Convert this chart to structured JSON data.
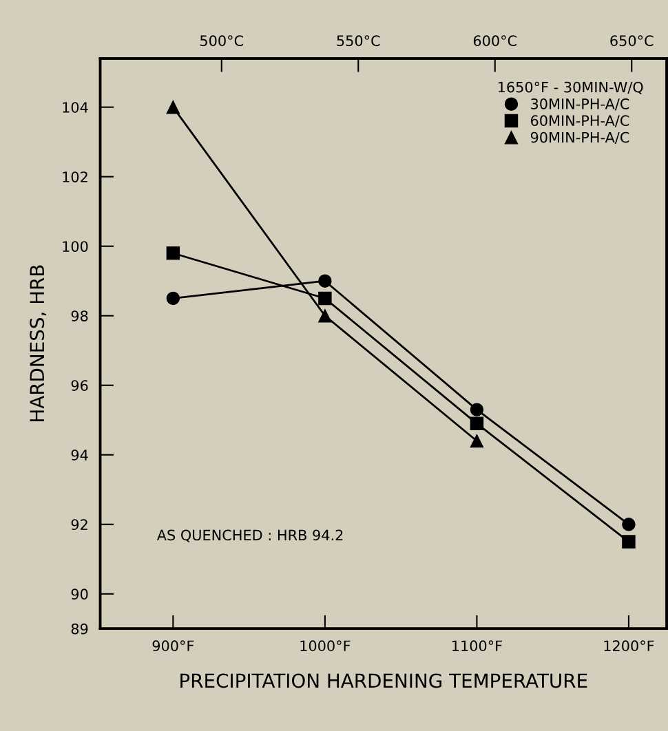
{
  "chart_data": {
    "type": "line",
    "xlabel": "PRECIPITATION HARDENING TEMPERATURE",
    "ylabel": "HARDNESS, HRB",
    "legend_title": "1650°F - 30MIN-W/Q",
    "legend": "top right",
    "grid": false,
    "x": [
      900,
      1000,
      1100,
      1200
    ],
    "xlim": [
      852,
      1225
    ],
    "xticks": [
      {
        "value": 900,
        "label": "900°F"
      },
      {
        "value": 1000,
        "label": "1000°F"
      },
      {
        "value": 1100,
        "label": "1100°F"
      },
      {
        "value": 1200,
        "label": "1200°F"
      }
    ],
    "x2lim": [
      455.6,
      662.8
    ],
    "x2ticks": [
      {
        "value": 500,
        "label": "500°C"
      },
      {
        "value": 550,
        "label": "550°C"
      },
      {
        "value": 600,
        "label": "600°C"
      },
      {
        "value": 650,
        "label": "650°C"
      }
    ],
    "ylim": [
      89,
      105.4
    ],
    "yticks": [
      89,
      90,
      92,
      94,
      96,
      98,
      100,
      102,
      104
    ],
    "line_style": "solid",
    "series": [
      {
        "name": "30MIN-PH-A/C",
        "color": "#000000",
        "marker": "circle",
        "values": [
          98.5,
          99.0,
          95.3,
          92.0
        ]
      },
      {
        "name": "60MIN-PH-A/C",
        "color": "#000000",
        "marker": "square",
        "values": [
          99.8,
          98.5,
          94.9,
          91.5
        ]
      },
      {
        "name": "90MIN-PH-A/C",
        "color": "#000000",
        "marker": "triangle",
        "values": [
          104.0,
          98.0,
          94.4,
          null
        ]
      }
    ],
    "annotations": [
      {
        "text": "AS QUENCHED : HRB 94.2"
      }
    ]
  }
}
